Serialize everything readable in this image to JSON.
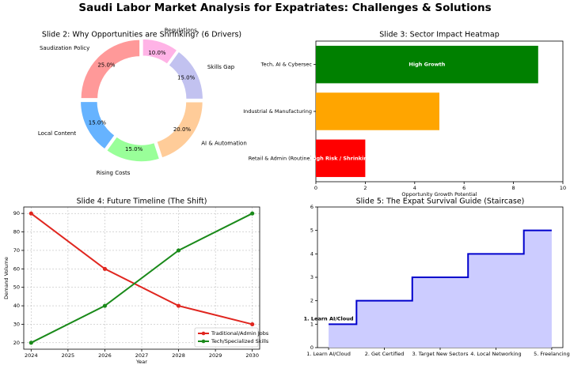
{
  "suptitle": "Saudi Labor Market Analysis for Expatriates: Challenges & Solutions",
  "chart_data": [
    {
      "type": "pie",
      "title": "Slide 2: Why Opportunities are Shrinking? (6 Drivers)",
      "labels": [
        "Saudization Policy",
        "Local Content",
        "Rising Costs",
        "AI & Automation",
        "Skills Gap",
        "Regulations"
      ],
      "values": [
        25.0,
        15.0,
        15.0,
        20.0,
        15.0,
        10.0
      ],
      "value_labels": [
        "25.0%",
        "15.0%",
        "15.0%",
        "20.0%",
        "15.0%",
        "10.0%"
      ],
      "colors": [
        "#ff9999",
        "#66b3ff",
        "#99ff99",
        "#ffcc99",
        "#c2c2f0",
        "#ffb3e6"
      ],
      "donut": true
    },
    {
      "type": "bar",
      "orientation": "horizontal",
      "title": "Slide 3: Sector Impact Heatmap",
      "categories": [
        "Retail & Admin (Routine)",
        "Industrial & Manufacturing",
        "Tech, AI & Cybersec"
      ],
      "values": [
        2,
        5,
        9
      ],
      "colors": [
        "#ff0000",
        "#ffa500",
        "#008000"
      ],
      "bar_labels": [
        "High Risk / Shrinking",
        "",
        "High Growth"
      ],
      "xlabel": "Opportunity Growth Potential",
      "xlim": [
        0,
        10
      ],
      "xticks": [
        "0",
        "2",
        "4",
        "6",
        "8",
        "10"
      ]
    },
    {
      "type": "line",
      "title": "Slide 4: Future Timeline (The Shift)",
      "x": [
        2024,
        2026,
        2028,
        2030
      ],
      "series": [
        {
          "name": "Traditional/Admin Jobs",
          "values": [
            90,
            60,
            40,
            30
          ],
          "color": "#e0261f"
        },
        {
          "name": "Tech/Specialized Skills",
          "values": [
            20,
            40,
            70,
            90
          ],
          "color": "#1a8a1a"
        }
      ],
      "xlabel": "Year",
      "ylabel": "Demand Volume",
      "xlim": [
        2023.8,
        2030.2
      ],
      "ylim": [
        16.5,
        93.5
      ],
      "xticks": [
        "2024",
        "2025",
        "2026",
        "2027",
        "2028",
        "2029",
        "2030"
      ],
      "yticks": [
        "20",
        "30",
        "40",
        "50",
        "60",
        "70",
        "80",
        "90"
      ],
      "grid": true,
      "legend": "lower-right"
    },
    {
      "type": "area",
      "title": "Slide 5: The Expat Survival Guide (Staircase)",
      "categories": [
        "1. Learn AI/Cloud",
        "2. Get Certified",
        "3. Target New Sectors",
        "4. Local Networking",
        "5. Freelancing"
      ],
      "values": [
        1,
        2,
        3,
        4,
        5
      ],
      "step": true,
      "annotation": "1. Learn AI/Cloud",
      "ylim": [
        0,
        6
      ],
      "yticks": [
        "0",
        "1",
        "2",
        "3",
        "4",
        "5",
        "6"
      ],
      "color": "#0000cc",
      "fill": "#ccccff"
    }
  ]
}
